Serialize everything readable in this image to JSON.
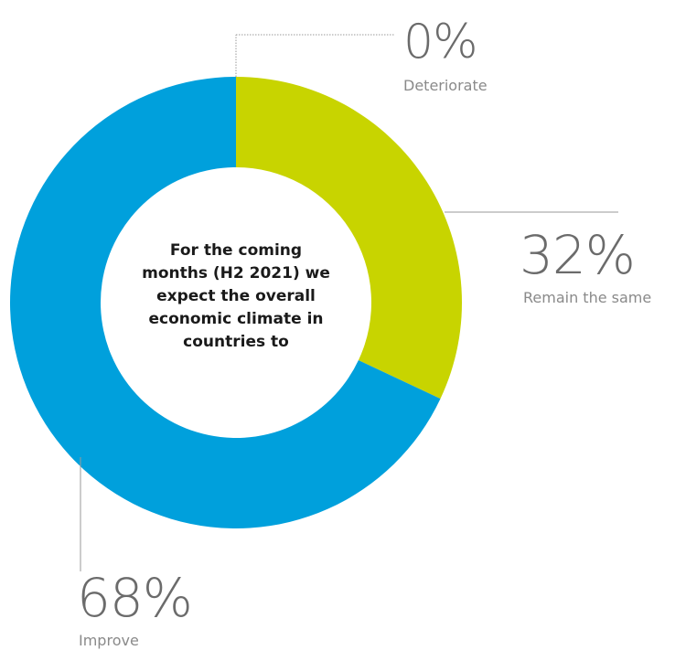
{
  "chart_data": {
    "type": "pie",
    "center_text": "For the coming\nmonths (H2 2021) we\nexpect the overall\neconomic climate in\ncountries to",
    "slices": [
      {
        "label": "Deteriorate",
        "value": 0,
        "display": "0%",
        "color": "#8a8a8a"
      },
      {
        "label": "Remain the same",
        "value": 32,
        "display": "32%",
        "color": "#c8d400"
      },
      {
        "label": "Improve",
        "value": 68,
        "display": "68%",
        "color": "#00a0dc"
      }
    ],
    "donut": true,
    "grid": false
  }
}
